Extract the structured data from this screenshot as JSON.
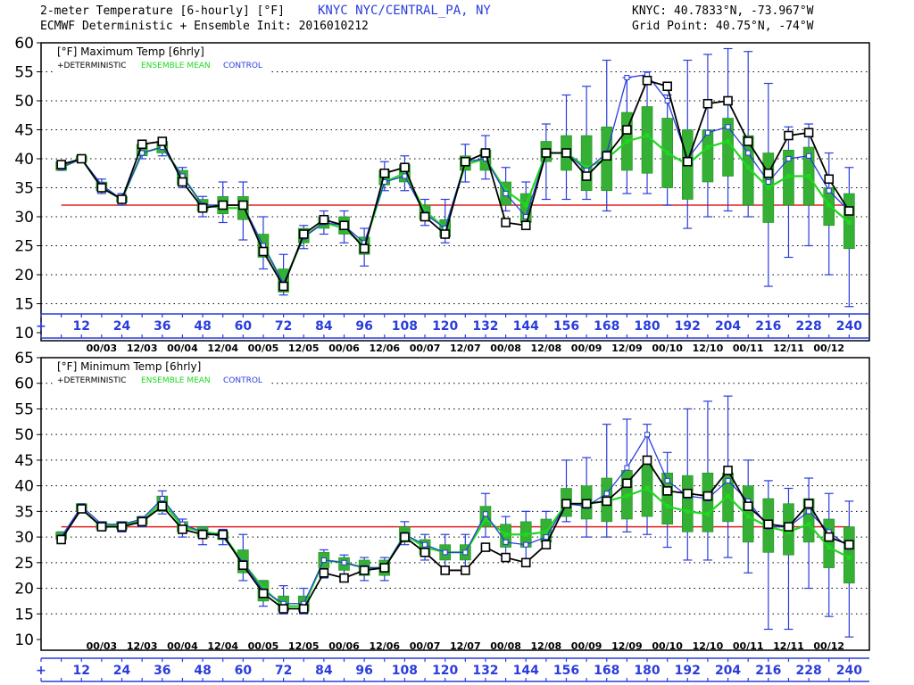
{
  "header": {
    "title_line1": "2-meter Temperature [6-hourly] [°F]",
    "station": "KNYC NYC/CENTRAL_PA, NY",
    "title_line2": "ECMWF Deterministic + Ensemble Init: 2016010212",
    "coords_line1": "KNYC: 40.7833°N, -73.967°W",
    "coords_line2": "Grid Point: 40.75°N, -74°W"
  },
  "colors": {
    "deterministic": "#000000",
    "ensemble_mean": "#1ed81e",
    "control": "#2a3ddc",
    "box_fill": "#35b035",
    "freezing_line": "#e02020"
  },
  "chart_data": [
    {
      "type": "line",
      "title": "[°F] Maximum Temp [6hrly]",
      "legend": {
        "deterministic": "+DETERMINISTIC",
        "ensemble_mean": "ENSEMBLE MEAN",
        "control": "CONTROL"
      },
      "ylim": [
        10,
        60
      ],
      "yticks": [
        10,
        15,
        20,
        25,
        30,
        35,
        40,
        45,
        50,
        55,
        60
      ],
      "reference_line": 32,
      "x": [
        6,
        12,
        18,
        24,
        30,
        36,
        42,
        48,
        54,
        60,
        66,
        72,
        78,
        84,
        90,
        96,
        102,
        108,
        114,
        120,
        126,
        132,
        138,
        144,
        150,
        156,
        162,
        168,
        174,
        180,
        186,
        192,
        198,
        204,
        210,
        216,
        222,
        228,
        234,
        240
      ],
      "series": [
        {
          "name": "+DETERMINISTIC",
          "values": [
            39,
            40,
            35,
            33,
            42.5,
            43,
            36,
            31.5,
            32,
            32,
            24,
            18,
            27,
            29.5,
            28.5,
            24.5,
            37.5,
            38.5,
            30,
            27,
            39.5,
            41,
            29,
            28.5,
            41,
            41,
            37,
            40.5,
            45,
            53.5,
            52.5,
            39.5,
            49.5,
            50,
            43,
            37.5,
            44,
            44.5,
            36.5,
            31
          ]
        },
        {
          "name": "ENSEMBLE MEAN",
          "values": [
            38.5,
            40,
            35,
            33,
            41,
            42,
            37,
            32,
            31.5,
            31.5,
            25,
            18.5,
            26.5,
            29,
            28,
            25,
            36,
            37.5,
            31,
            28,
            39,
            40,
            34.5,
            32,
            41,
            41,
            38.5,
            40,
            43,
            44,
            41,
            39,
            42,
            43,
            38.5,
            35,
            37,
            37,
            32,
            29
          ]
        },
        {
          "name": "CONTROL",
          "values": [
            38.5,
            40,
            35.5,
            33,
            41,
            42,
            37,
            32,
            32,
            32,
            25,
            18.5,
            26.5,
            29,
            28.5,
            25.5,
            36,
            37,
            30.5,
            28,
            39.5,
            40,
            34,
            30,
            41,
            41,
            38,
            41,
            54,
            54.5,
            50,
            40,
            44.5,
            45.5,
            41,
            36,
            40,
            40.5,
            34.5,
            31
          ]
        }
      ],
      "boxes": [
        {
          "x": 6,
          "low": 38,
          "high": 39.5,
          "wlow": 38,
          "whigh": 39.5
        },
        {
          "x": 12,
          "low": 39.5,
          "high": 40.5,
          "wlow": 39.5,
          "whigh": 40.5
        },
        {
          "x": 18,
          "low": 34.5,
          "high": 36,
          "wlow": 34,
          "whigh": 36.5
        },
        {
          "x": 24,
          "low": 32.5,
          "high": 33.5,
          "wlow": 32,
          "whigh": 34
        },
        {
          "x": 30,
          "low": 40.5,
          "high": 42.5,
          "wlow": 40,
          "whigh": 43
        },
        {
          "x": 36,
          "low": 41,
          "high": 43,
          "wlow": 40.5,
          "whigh": 43.5
        },
        {
          "x": 42,
          "low": 35.5,
          "high": 38,
          "wlow": 35,
          "whigh": 38.5
        },
        {
          "x": 48,
          "low": 31,
          "high": 33,
          "wlow": 30,
          "whigh": 33.5
        },
        {
          "x": 54,
          "low": 30.5,
          "high": 33.5,
          "wlow": 29,
          "whigh": 36
        },
        {
          "x": 60,
          "low": 29.5,
          "high": 33.5,
          "wlow": 26,
          "whigh": 36
        },
        {
          "x": 66,
          "low": 23,
          "high": 27,
          "wlow": 21,
          "whigh": 30
        },
        {
          "x": 72,
          "low": 17,
          "high": 21,
          "wlow": 16.5,
          "whigh": 23.5
        },
        {
          "x": 78,
          "low": 25.5,
          "high": 28,
          "wlow": 24.5,
          "whigh": 28.5
        },
        {
          "x": 84,
          "low": 28,
          "high": 30,
          "wlow": 27,
          "whigh": 31
        },
        {
          "x": 90,
          "low": 27,
          "high": 30,
          "wlow": 25.5,
          "whigh": 31
        },
        {
          "x": 96,
          "low": 23.5,
          "high": 26.5,
          "wlow": 21.5,
          "whigh": 28
        },
        {
          "x": 102,
          "low": 35.5,
          "high": 38,
          "wlow": 34.5,
          "whigh": 39.5
        },
        {
          "x": 108,
          "low": 36,
          "high": 39,
          "wlow": 34.5,
          "whigh": 40.5
        },
        {
          "x": 114,
          "low": 29.5,
          "high": 32,
          "wlow": 28.5,
          "whigh": 33
        },
        {
          "x": 120,
          "low": 26.5,
          "high": 29.5,
          "wlow": 25.5,
          "whigh": 33
        },
        {
          "x": 126,
          "low": 38,
          "high": 40.5,
          "wlow": 36,
          "whigh": 42.5
        },
        {
          "x": 132,
          "low": 38,
          "high": 41.5,
          "wlow": 36.5,
          "whigh": 44
        },
        {
          "x": 138,
          "low": 32,
          "high": 36,
          "wlow": 31,
          "whigh": 38.5
        },
        {
          "x": 144,
          "low": 29,
          "high": 34,
          "wlow": 28.5,
          "whigh": 36
        },
        {
          "x": 150,
          "low": 39.5,
          "high": 43,
          "wlow": 33,
          "whigh": 46
        },
        {
          "x": 156,
          "low": 38,
          "high": 44,
          "wlow": 33,
          "whigh": 51
        },
        {
          "x": 162,
          "low": 34.5,
          "high": 44,
          "wlow": 33,
          "whigh": 52.5
        },
        {
          "x": 168,
          "low": 34.5,
          "high": 45.5,
          "wlow": 31,
          "whigh": 57
        },
        {
          "x": 174,
          "low": 38,
          "high": 48,
          "wlow": 34,
          "whigh": 54
        },
        {
          "x": 180,
          "low": 37.5,
          "high": 49,
          "wlow": 34,
          "whigh": 55
        },
        {
          "x": 186,
          "low": 35,
          "high": 47,
          "wlow": 32,
          "whigh": 51
        },
        {
          "x": 192,
          "low": 33,
          "high": 45,
          "wlow": 28,
          "whigh": 57
        },
        {
          "x": 198,
          "low": 36,
          "high": 45,
          "wlow": 30,
          "whigh": 58
        },
        {
          "x": 204,
          "low": 37,
          "high": 47,
          "wlow": 31,
          "whigh": 59
        },
        {
          "x": 210,
          "low": 32,
          "high": 44,
          "wlow": 30,
          "whigh": 58.5
        },
        {
          "x": 216,
          "low": 29,
          "high": 41,
          "wlow": 18,
          "whigh": 53
        },
        {
          "x": 222,
          "low": 32,
          "high": 41.5,
          "wlow": 23,
          "whigh": 45.5
        },
        {
          "x": 228,
          "low": 32,
          "high": 42,
          "wlow": 25,
          "whigh": 46
        },
        {
          "x": 234,
          "low": 28.5,
          "high": 35,
          "wlow": 20,
          "whigh": 41
        },
        {
          "x": 240,
          "low": 24.5,
          "high": 34,
          "wlow": 14.5,
          "whigh": 38.5
        }
      ]
    },
    {
      "type": "line",
      "title": "[°F] Minimum Temp [6hrly]",
      "legend": {
        "deterministic": "+DETERMINISTIC",
        "ensemble_mean": "ENSEMBLE MEAN",
        "control": "CONTROL"
      },
      "ylim": [
        10,
        65
      ],
      "yticks": [
        10,
        15,
        20,
        25,
        30,
        35,
        40,
        45,
        50,
        55,
        60,
        65
      ],
      "reference_line": 32,
      "x": [
        6,
        12,
        18,
        24,
        30,
        36,
        42,
        48,
        54,
        60,
        66,
        72,
        78,
        84,
        90,
        96,
        102,
        108,
        114,
        120,
        126,
        132,
        138,
        144,
        150,
        156,
        162,
        168,
        174,
        180,
        186,
        192,
        198,
        204,
        210,
        216,
        222,
        228,
        234,
        240
      ],
      "series": [
        {
          "name": "+DETERMINISTIC",
          "values": [
            29.5,
            35.5,
            32,
            32,
            33,
            36,
            31.5,
            30.5,
            30.5,
            24.5,
            19,
            16,
            16,
            23,
            22,
            23.5,
            24,
            30,
            27,
            23.5,
            23.5,
            28,
            26,
            25,
            28.5,
            36.5,
            36.5,
            37,
            40.5,
            45,
            39,
            38.5,
            38,
            43,
            36,
            32.5,
            32,
            36.5,
            30,
            28.5
          ]
        },
        {
          "name": "ENSEMBLE MEAN",
          "values": [
            30,
            35.5,
            32,
            32.5,
            33,
            37,
            32,
            31,
            30.5,
            25,
            20,
            16.5,
            16.5,
            25.5,
            25,
            24,
            24,
            30.5,
            28,
            27,
            27,
            33.5,
            30.5,
            30.5,
            31,
            36.5,
            36.5,
            37,
            38,
            39.5,
            36,
            35,
            34.5,
            38,
            34,
            32,
            31,
            32.5,
            28,
            26
          ]
        },
        {
          "name": "CONTROL",
          "values": [
            30,
            36,
            32.5,
            32.5,
            33.5,
            37.5,
            32.5,
            31,
            30,
            25,
            19.5,
            17,
            17,
            25.5,
            25,
            24,
            24,
            30.5,
            28.5,
            27,
            27,
            34.5,
            29,
            28.5,
            30,
            36.5,
            36,
            38.5,
            43.5,
            50,
            41,
            38,
            37.5,
            41,
            37,
            32,
            32,
            35,
            31,
            28
          ]
        }
      ],
      "boxes": [
        {
          "x": 6,
          "low": 29.5,
          "high": 31,
          "wlow": 29.5,
          "whigh": 31
        },
        {
          "x": 12,
          "low": 35,
          "high": 36.5,
          "wlow": 35,
          "whigh": 36.5
        },
        {
          "x": 18,
          "low": 31.5,
          "high": 33,
          "wlow": 31.5,
          "whigh": 33
        },
        {
          "x": 24,
          "low": 31.5,
          "high": 33,
          "wlow": 31,
          "whigh": 33
        },
        {
          "x": 30,
          "low": 32.5,
          "high": 34,
          "wlow": 32,
          "whigh": 34
        },
        {
          "x": 36,
          "low": 35,
          "high": 38,
          "wlow": 34.5,
          "whigh": 39
        },
        {
          "x": 42,
          "low": 31,
          "high": 33,
          "wlow": 30,
          "whigh": 33.5
        },
        {
          "x": 48,
          "low": 30,
          "high": 32,
          "wlow": 28.5,
          "whigh": 32
        },
        {
          "x": 54,
          "low": 29.5,
          "high": 31,
          "wlow": 28.5,
          "whigh": 31.5
        },
        {
          "x": 60,
          "low": 23,
          "high": 27.5,
          "wlow": 21.5,
          "whigh": 30.5
        },
        {
          "x": 66,
          "low": 17.5,
          "high": 21.5,
          "wlow": 16.5,
          "whigh": 21.5
        },
        {
          "x": 72,
          "low": 15.5,
          "high": 18.5,
          "wlow": 15,
          "whigh": 20.5
        },
        {
          "x": 78,
          "low": 15.5,
          "high": 18.5,
          "wlow": 15,
          "whigh": 20
        },
        {
          "x": 84,
          "low": 24,
          "high": 27,
          "wlow": 22,
          "whigh": 27.5
        },
        {
          "x": 90,
          "low": 23.5,
          "high": 26,
          "wlow": 21.5,
          "whigh": 26.5
        },
        {
          "x": 96,
          "low": 22.5,
          "high": 25.5,
          "wlow": 21.5,
          "whigh": 26
        },
        {
          "x": 102,
          "low": 22.5,
          "high": 25.5,
          "wlow": 21.5,
          "whigh": 26
        },
        {
          "x": 108,
          "low": 29,
          "high": 32,
          "wlow": 28.5,
          "whigh": 33
        },
        {
          "x": 114,
          "low": 26.5,
          "high": 29.5,
          "wlow": 25.5,
          "whigh": 30.5
        },
        {
          "x": 120,
          "low": 25.5,
          "high": 28.5,
          "wlow": 24,
          "whigh": 30.5
        },
        {
          "x": 126,
          "low": 25.5,
          "high": 28.5,
          "wlow": 24,
          "whigh": 30.5
        },
        {
          "x": 132,
          "low": 32,
          "high": 36,
          "wlow": 30,
          "whigh": 38.5
        },
        {
          "x": 138,
          "low": 28,
          "high": 32.5,
          "wlow": 25.5,
          "whigh": 34
        },
        {
          "x": 144,
          "low": 28,
          "high": 33,
          "wlow": 25,
          "whigh": 35
        },
        {
          "x": 150,
          "low": 29,
          "high": 33.5,
          "wlow": 28.5,
          "whigh": 35
        },
        {
          "x": 156,
          "low": 34,
          "high": 39.5,
          "wlow": 33,
          "whigh": 45
        },
        {
          "x": 162,
          "low": 33.5,
          "high": 40,
          "wlow": 30,
          "whigh": 45.5
        },
        {
          "x": 168,
          "low": 33,
          "high": 41.5,
          "wlow": 30,
          "whigh": 52
        },
        {
          "x": 174,
          "low": 33.5,
          "high": 43,
          "wlow": 31,
          "whigh": 53
        },
        {
          "x": 180,
          "low": 34,
          "high": 44,
          "wlow": 30.5,
          "whigh": 52
        },
        {
          "x": 186,
          "low": 32.5,
          "high": 42.5,
          "wlow": 28,
          "whigh": 46.5
        },
        {
          "x": 192,
          "low": 31,
          "high": 42,
          "wlow": 25.5,
          "whigh": 55
        },
        {
          "x": 198,
          "low": 31,
          "high": 42.5,
          "wlow": 25.5,
          "whigh": 56.5
        },
        {
          "x": 204,
          "low": 33,
          "high": 42.5,
          "wlow": 26,
          "whigh": 57.5
        },
        {
          "x": 210,
          "low": 29,
          "high": 40,
          "wlow": 23,
          "whigh": 45
        },
        {
          "x": 216,
          "low": 27,
          "high": 37.5,
          "wlow": 12,
          "whigh": 41
        },
        {
          "x": 222,
          "low": 26.5,
          "high": 36.5,
          "wlow": 12,
          "whigh": 39.5
        },
        {
          "x": 228,
          "low": 29,
          "high": 37.5,
          "wlow": 20,
          "whigh": 41.5
        },
        {
          "x": 234,
          "low": 24,
          "high": 33.5,
          "wlow": 14.5,
          "whigh": 38.5
        },
        {
          "x": 240,
          "low": 21,
          "high": 32,
          "wlow": 10.5,
          "whigh": 37
        }
      ]
    }
  ],
  "x_axis": {
    "hour_labels": [
      "+",
      "12",
      "24",
      "36",
      "48",
      "60",
      "72",
      "84",
      "96",
      "108",
      "120",
      "132",
      "144",
      "156",
      "168",
      "180",
      "192",
      "204",
      "216",
      "228",
      "240"
    ],
    "hour_values": [
      0,
      12,
      24,
      36,
      48,
      60,
      72,
      84,
      96,
      108,
      120,
      132,
      144,
      156,
      168,
      180,
      192,
      204,
      216,
      228,
      240
    ],
    "date_labels": [
      "00/03",
      "12/03",
      "00/04",
      "12/04",
      "00/05",
      "12/05",
      "00/06",
      "12/06",
      "00/07",
      "12/07",
      "00/08",
      "12/08",
      "00/09",
      "12/09",
      "00/10",
      "12/10",
      "00/11",
      "12/11",
      "00/12"
    ],
    "date_hours": [
      18,
      30,
      42,
      54,
      66,
      78,
      90,
      102,
      114,
      126,
      138,
      150,
      162,
      174,
      186,
      198,
      210,
      222,
      234
    ]
  }
}
